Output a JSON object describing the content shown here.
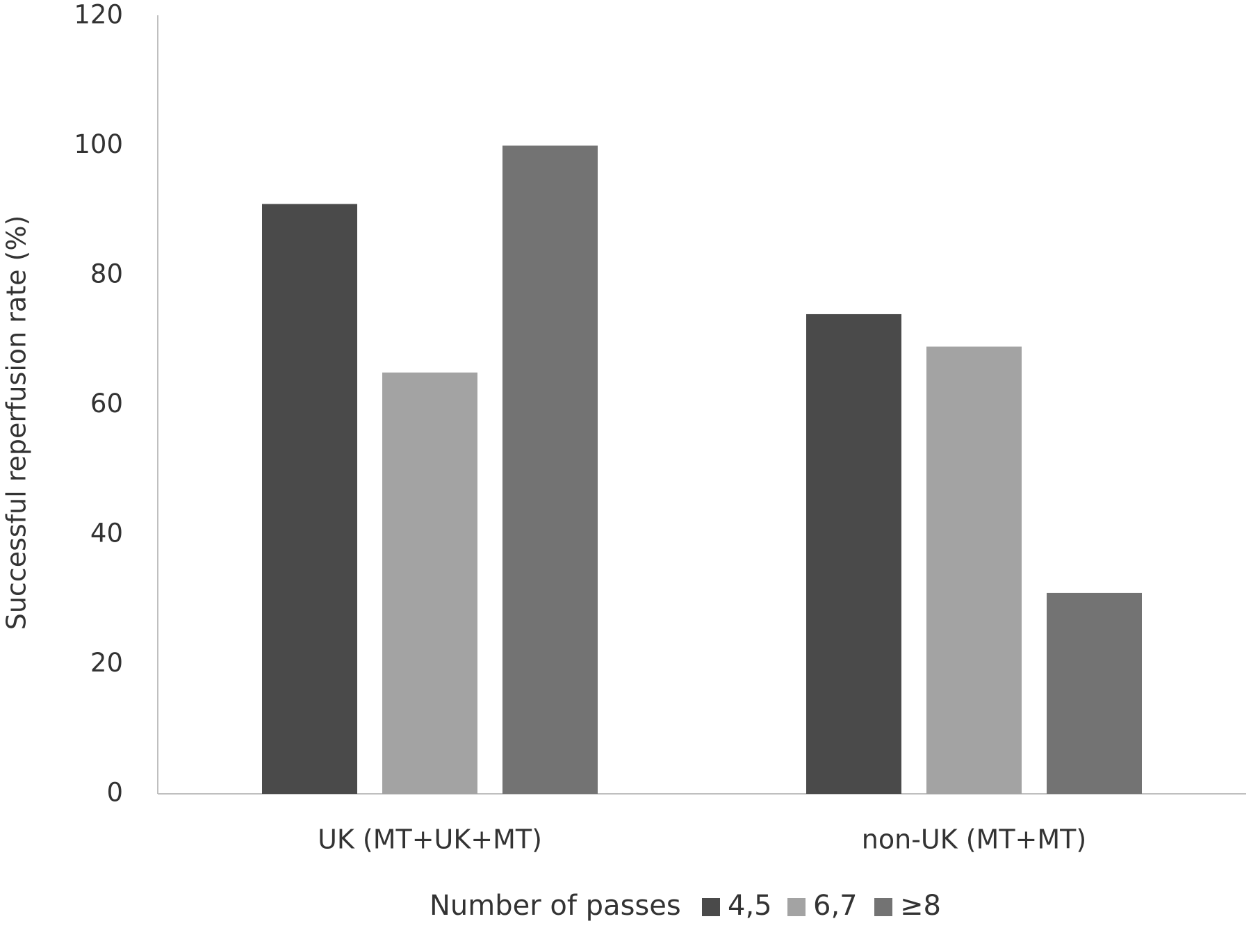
{
  "chart_data": {
    "type": "bar",
    "y_label": "Successful reperfusion rate (%)",
    "categories": [
      "UK (MT+UK+MT)",
      "non-UK (MT+MT)"
    ],
    "legend_title": "Number of passes",
    "series": [
      {
        "name": "4,5",
        "color": "#4a4a4a",
        "values": [
          91,
          74
        ]
      },
      {
        "name": "6,7",
        "color": "#a3a3a3",
        "values": [
          65,
          69
        ]
      },
      {
        "name": "≥8",
        "color": "#737373",
        "values": [
          100,
          31
        ]
      }
    ],
    "ylim": [
      0,
      120
    ],
    "yticks": [
      0,
      20,
      40,
      60,
      80,
      100,
      120
    ],
    "grid": false
  }
}
